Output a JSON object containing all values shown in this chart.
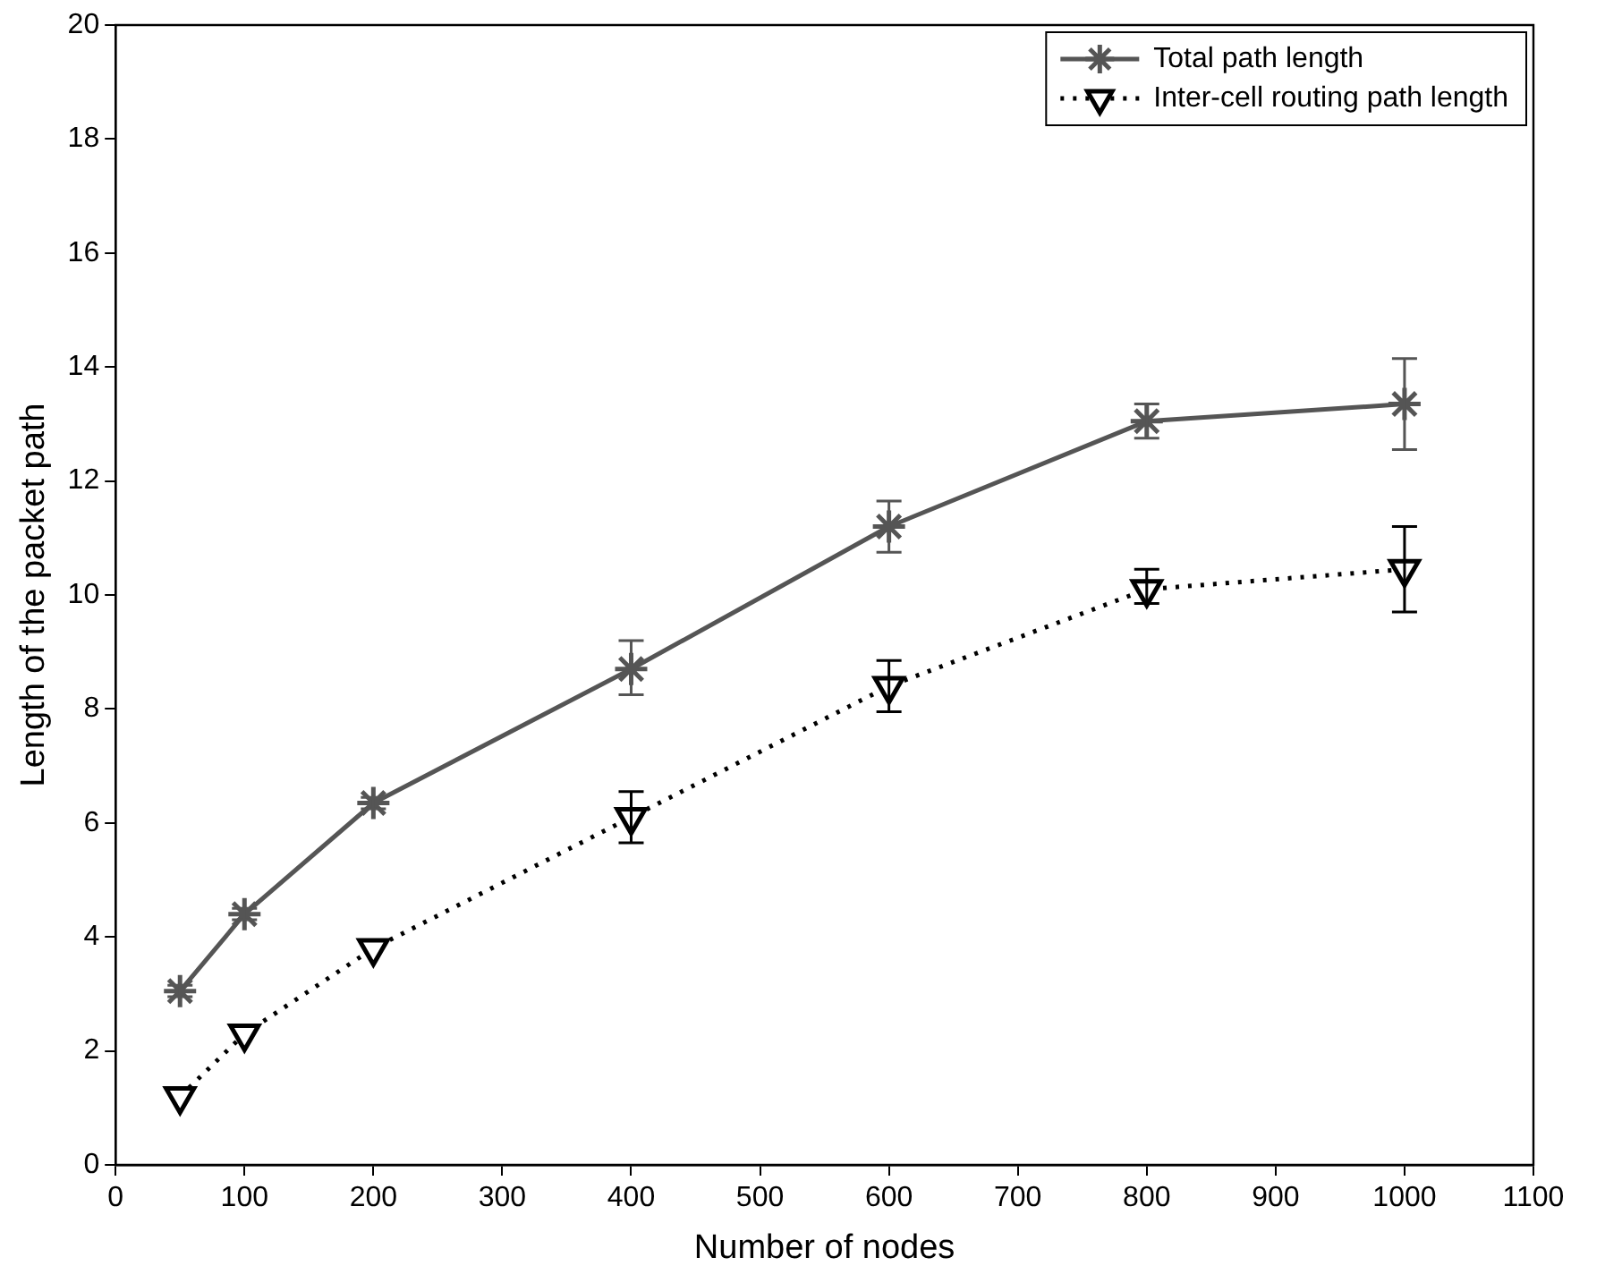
{
  "chart_data": {
    "type": "line",
    "xlabel": "Number of nodes",
    "ylabel": "Length of the packet path",
    "x": [
      50,
      100,
      200,
      400,
      600,
      800,
      1000
    ],
    "series": [
      {
        "name": "Total path length",
        "color": "#555555",
        "marker": "cross",
        "line_style": "solid",
        "values": [
          3.05,
          4.4,
          6.35,
          8.7,
          11.2,
          13.05,
          13.35
        ],
        "errors": [
          [
            2.95,
            3.15
          ],
          [
            4.3,
            4.5
          ],
          [
            6.25,
            6.45
          ],
          [
            8.25,
            9.2
          ],
          [
            10.75,
            11.65
          ],
          [
            12.75,
            13.35
          ],
          [
            12.55,
            14.15
          ]
        ]
      },
      {
        "name": "Inter-cell routing path length",
        "color": "#000000",
        "marker": "triangle",
        "line_style": "dotted",
        "values": [
          1.2,
          2.3,
          3.8,
          6.1,
          8.4,
          10.1,
          10.45
        ],
        "errors": [
          null,
          null,
          null,
          [
            5.65,
            6.55
          ],
          [
            7.95,
            8.85
          ],
          [
            9.85,
            10.45
          ],
          [
            9.7,
            11.2
          ]
        ]
      }
    ],
    "xlim": [
      0,
      1100
    ],
    "xticks": [
      0,
      100,
      200,
      300,
      400,
      500,
      600,
      700,
      800,
      900,
      1000,
      1100
    ],
    "ylim": [
      0,
      20
    ],
    "yticks": [
      0,
      2,
      4,
      6,
      8,
      10,
      12,
      14,
      16,
      18,
      20
    ],
    "grid": false,
    "legend": "top right"
  }
}
